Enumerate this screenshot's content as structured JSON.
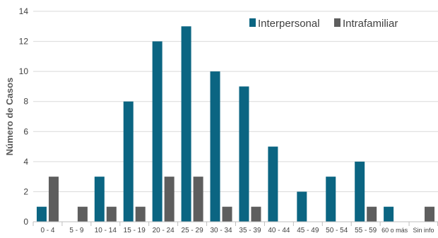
{
  "chart_data": {
    "type": "bar",
    "title": "",
    "xlabel": "",
    "ylabel": "Número de Casos",
    "ylim": [
      0,
      14
    ],
    "yticks": [
      0,
      2,
      4,
      6,
      8,
      10,
      12,
      14
    ],
    "grid": "horizontal",
    "legend_position": "top-right",
    "categories": [
      "0 - 4",
      "5 - 9",
      "10 - 14",
      "15 - 19",
      "20 - 24",
      "25 - 29",
      "30 - 34",
      "35 - 39",
      "40 - 44",
      "45 - 49",
      "50 - 54",
      "55 - 59",
      "60 o más",
      "Sin info"
    ],
    "series": [
      {
        "name": "Interpersonal",
        "color": "#0b6582",
        "values": [
          1,
          0,
          3,
          8,
          12,
          13,
          10,
          9,
          5,
          2,
          3,
          4,
          1,
          0
        ]
      },
      {
        "name": "Intrafamiliar",
        "color": "#5e5e5e",
        "values": [
          3,
          1,
          1,
          1,
          3,
          3,
          1,
          1,
          0,
          0,
          0,
          1,
          0,
          1
        ]
      }
    ]
  }
}
